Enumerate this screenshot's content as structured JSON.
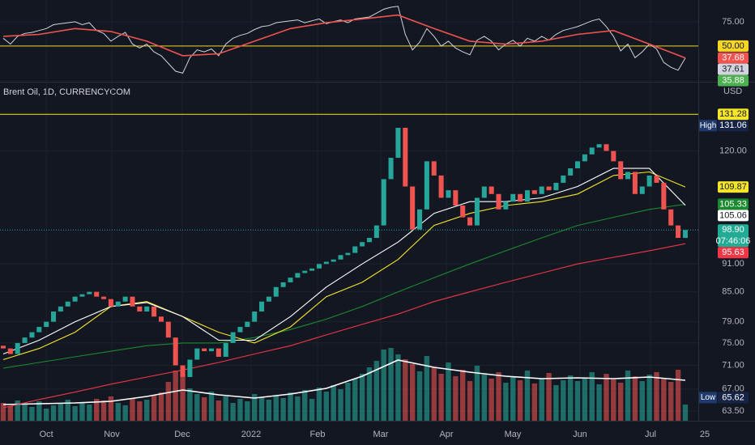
{
  "chart_data": [
    {
      "type": "rsi",
      "ylim": [
        14,
        97.5
      ],
      "yticks": [
        {
          "value": 75,
          "label": "75.00"
        }
      ],
      "level": {
        "value": 50,
        "label": "50.00",
        "color": "#f5d527"
      },
      "series": [
        {
          "color": "#d1d4dc",
          "last_label": "37.61",
          "values": [
            58,
            52,
            60,
            63,
            64,
            66,
            68,
            72,
            73,
            74,
            75,
            72,
            74,
            66,
            63,
            55,
            60,
            64,
            52,
            48,
            52,
            44,
            40,
            32,
            24,
            22,
            38,
            46,
            44,
            47,
            40,
            52,
            58,
            61,
            63,
            67,
            70,
            71,
            74,
            75,
            76,
            77,
            74,
            76,
            78,
            73,
            75,
            77,
            74,
            78,
            79,
            80,
            84,
            88,
            90,
            91,
            62,
            46,
            54,
            68,
            60,
            50,
            55,
            48,
            44,
            41,
            56,
            60,
            55,
            46,
            52,
            56,
            50,
            58,
            55,
            60,
            56,
            62,
            66,
            68,
            70,
            73,
            76,
            78,
            70,
            60,
            45,
            52,
            38,
            44,
            52,
            47,
            33,
            28,
            25,
            37.61
          ]
        },
        {
          "color": "#f05350",
          "last_label": "37.68",
          "x": [
            0,
            5,
            10,
            15,
            20,
            25,
            30,
            35,
            40,
            45,
            50,
            55,
            60,
            65,
            70,
            75,
            80,
            85,
            90,
            95
          ],
          "values": [
            60,
            62,
            68,
            65,
            55,
            40,
            42,
            55,
            68,
            74,
            78,
            82,
            68,
            55,
            52,
            55,
            62,
            66,
            52,
            37.68
          ]
        }
      ],
      "marker": {
        "value": 35.88,
        "label": "35.88",
        "color": "#4caf50"
      }
    },
    {
      "type": "candlestick",
      "title": "Brent Oil, 1D, CURRENCYCOM",
      "currency": "USD",
      "log_scale": true,
      "grid": true,
      "up_color": "#26a69a",
      "down_color": "#ef5350",
      "ylim": [
        62,
        141.6
      ],
      "yticks": [
        {
          "value": 120,
          "label": "120.00"
        },
        {
          "value": 91,
          "label": "91.00"
        },
        {
          "value": 85,
          "label": "85.00"
        },
        {
          "value": 79,
          "label": "79.00"
        },
        {
          "value": 75,
          "label": "75.00"
        },
        {
          "value": 71,
          "label": "71.00"
        },
        {
          "value": 67,
          "label": "67.00"
        },
        {
          "value": 63.5,
          "label": "63.50"
        }
      ],
      "xlim": [
        -0.45,
        96.81
      ],
      "xticks": [
        {
          "value": 6,
          "label": "Oct"
        },
        {
          "value": 15.12,
          "label": "Nov"
        },
        {
          "value": 24.94,
          "label": "Dec"
        },
        {
          "value": 34.53,
          "label": "2022"
        },
        {
          "value": 43.78,
          "label": "Feb"
        },
        {
          "value": 52.58,
          "label": "Mar"
        },
        {
          "value": 61.72,
          "label": "Apr"
        },
        {
          "value": 70.97,
          "label": "May"
        },
        {
          "value": 80.33,
          "label": "Jun"
        },
        {
          "value": 90.15,
          "label": "Jul"
        },
        {
          "value": 97.71,
          "label": "25"
        }
      ],
      "open": [
        74.5,
        74,
        73,
        75,
        76,
        77,
        78,
        79,
        81,
        82,
        83,
        84,
        84.5,
        85,
        84,
        83.5,
        82,
        83,
        84,
        82,
        81,
        82,
        80,
        79,
        76,
        71,
        69,
        72,
        74,
        73.5,
        74,
        72.5,
        75,
        77,
        78,
        79,
        81,
        83,
        84,
        86,
        87,
        88,
        89,
        89.5,
        90,
        91,
        91.5,
        92,
        93,
        93.5,
        95,
        96,
        97,
        100,
        112,
        118,
        127,
        110,
        99,
        104,
        117,
        113,
        107,
        109,
        105,
        102,
        100,
        107,
        110,
        108,
        104,
        106,
        108,
        106,
        109,
        108,
        110,
        109,
        111,
        113,
        115,
        117,
        119,
        121,
        122,
        120,
        117,
        112,
        114,
        108,
        110,
        113,
        111,
        104,
        100,
        97
      ],
      "high": {
        "name": "High",
        "value": 131.06,
        "label": "131.06"
      },
      "low": {
        "name": "Low",
        "value": 65.62,
        "label": "65.62"
      },
      "close": [
        74,
        73,
        75,
        76,
        77,
        78,
        79,
        81,
        82,
        83,
        84,
        84.5,
        85,
        84,
        83.5,
        82,
        83,
        84,
        82,
        81,
        82,
        80,
        79,
        76,
        71,
        69,
        72,
        74,
        73.5,
        74,
        72.5,
        75,
        77,
        78,
        79,
        81,
        83,
        84,
        86,
        87,
        88,
        89,
        89.5,
        90,
        91,
        91.5,
        92,
        93,
        93.5,
        95,
        96,
        97,
        100,
        112,
        118,
        127,
        110,
        99,
        104,
        117,
        113,
        107,
        109,
        105,
        102,
        100,
        107,
        110,
        108,
        104,
        106,
        108,
        106,
        109,
        108,
        110,
        109,
        111,
        113,
        115,
        117,
        119,
        121,
        122,
        120,
        117,
        112,
        114,
        108,
        110,
        113,
        111,
        104,
        100,
        97,
        98.9
      ],
      "series": [
        {
          "color": "#f23645",
          "last_label": "95.63",
          "x": [
            0,
            5,
            10,
            15,
            20,
            25,
            30,
            35,
            40,
            45,
            50,
            55,
            60,
            65,
            70,
            75,
            80,
            85,
            90,
            95
          ],
          "values": [
            64,
            65.3,
            66.5,
            67.8,
            69,
            70.2,
            71.5,
            73,
            74.5,
            76.5,
            78.5,
            80.5,
            83,
            85,
            87,
            89,
            91,
            92.5,
            94,
            95.63
          ]
        },
        {
          "color": "#1b8a2e",
          "last_label": "105.33",
          "x": [
            0,
            5,
            10,
            15,
            20,
            25,
            30,
            35,
            40,
            45,
            50,
            55,
            60,
            65,
            70,
            75,
            80,
            85,
            90,
            95
          ],
          "values": [
            70.5,
            71.5,
            72.5,
            73.5,
            74.5,
            75,
            75,
            76,
            77.5,
            79.5,
            82,
            85,
            88,
            91,
            94,
            97,
            100,
            102,
            104,
            105.33
          ]
        },
        {
          "color": "#f5e52a",
          "last_label": "109.87",
          "x": [
            0,
            5,
            10,
            15,
            20,
            25,
            30,
            35,
            40,
            45,
            50,
            55,
            60,
            65,
            70,
            75,
            80,
            85,
            90,
            95
          ],
          "values": [
            72,
            74,
            77,
            82,
            83,
            80,
            77,
            75,
            78,
            84,
            87,
            92,
            100,
            103,
            105,
            106,
            108,
            113,
            114,
            109.87
          ]
        },
        {
          "color": "#ffffff",
          "last_label": "105.06",
          "x": [
            0,
            5,
            10,
            15,
            20,
            25,
            30,
            35,
            40,
            45,
            50,
            55,
            60,
            65,
            70,
            75,
            80,
            85,
            90,
            95
          ],
          "values": [
            73,
            75.5,
            79,
            82,
            82.8,
            80,
            75.5,
            75.5,
            80,
            86,
            91,
            96,
            103,
            106,
            106,
            107,
            110,
            115,
            115,
            105.06
          ]
        }
      ],
      "volume": {
        "ylim": [
          0,
          120
        ],
        "values": [
          22,
          18,
          25,
          20,
          17,
          24,
          15,
          19,
          21,
          26,
          18,
          23,
          20,
          27,
          25,
          30,
          22,
          19,
          28,
          24,
          26,
          31,
          35,
          48,
          62,
          58,
          40,
          33,
          29,
          36,
          25,
          30,
          22,
          27,
          24,
          33,
          29,
          26,
          31,
          28,
          35,
          30,
          38,
          27,
          41,
          36,
          44,
          39,
          47,
          52,
          58,
          66,
          74,
          88,
          90,
          82,
          76,
          70,
          61,
          80,
          66,
          58,
          72,
          55,
          63,
          49,
          68,
          57,
          52,
          60,
          47,
          55,
          50,
          62,
          46,
          52,
          59,
          44,
          50,
          56,
          49,
          53,
          60,
          45,
          58,
          51,
          47,
          62,
          55,
          49,
          57,
          60,
          52,
          48,
          63,
          20
        ],
        "ma": {
          "color": "#ffffff",
          "x": [
            0,
            5,
            10,
            15,
            20,
            25,
            30,
            35,
            40,
            45,
            50,
            55,
            60,
            65,
            70,
            75,
            80,
            85,
            90,
            95
          ],
          "values": [
            20,
            21,
            22,
            24,
            30,
            38,
            32,
            28,
            33,
            40,
            55,
            75,
            66,
            60,
            55,
            52,
            53,
            52,
            54,
            50
          ]
        }
      },
      "level": {
        "value": 131.28,
        "label": "131.28",
        "color": "#f5e52a"
      },
      "last": {
        "value": 98.9,
        "label": "98.90",
        "countdown": "07:46:06",
        "color": "#22ab94"
      }
    }
  ]
}
